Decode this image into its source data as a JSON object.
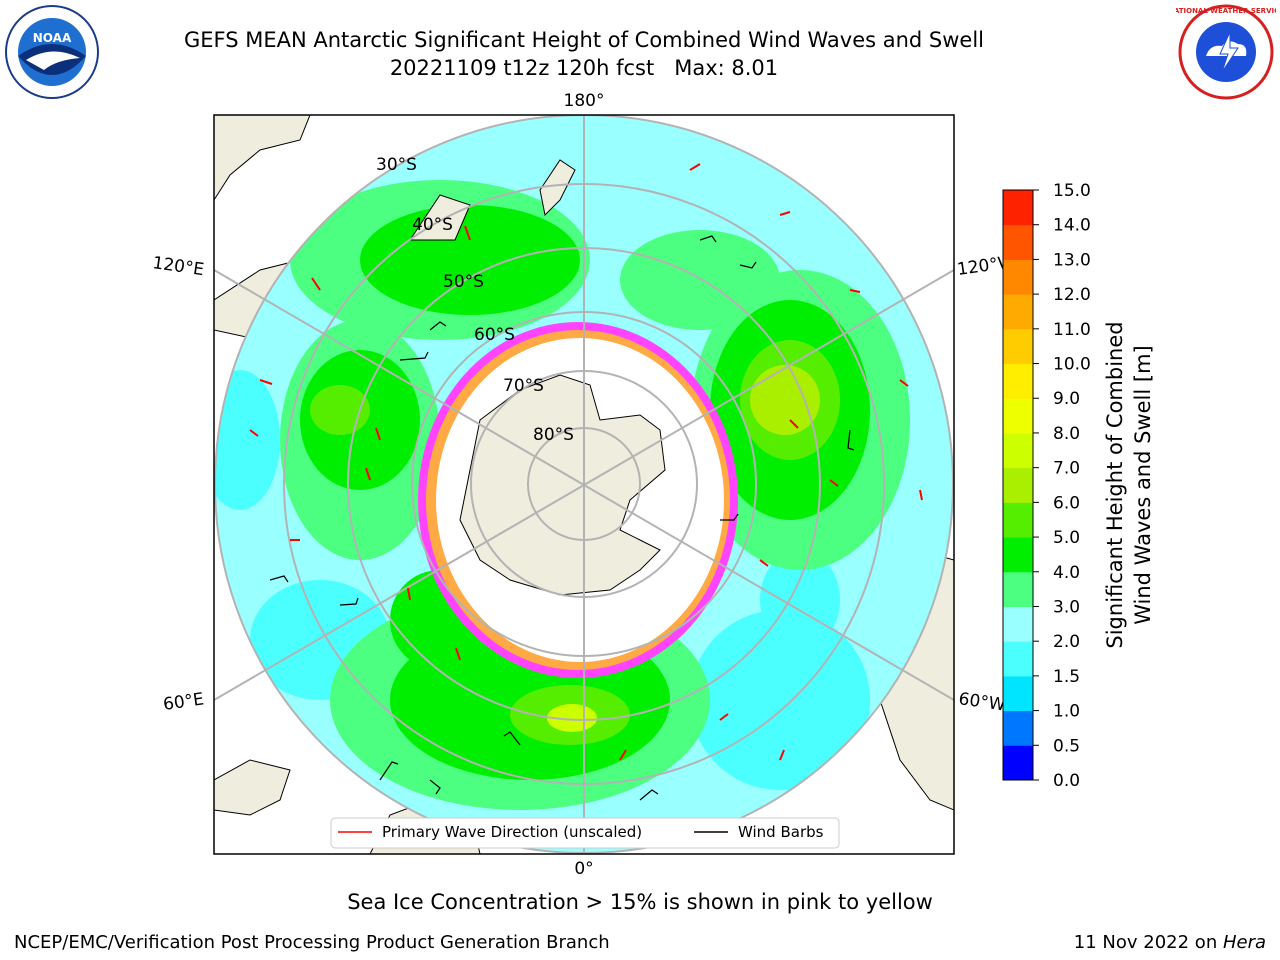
{
  "title": {
    "line1": "GEFS MEAN Antarctic Significant Height of Combined Wind Waves and Swell",
    "line2": "20221109 t12z 120h fcst   Max: 8.01"
  },
  "map": {
    "lon_labels": {
      "top": "180°",
      "bottom": "0°",
      "upper_left": "120°E",
      "upper_right": "120°W",
      "lower_left": "60°E",
      "lower_right": "60°W"
    },
    "lat_labels": [
      "30°S",
      "40°S",
      "50°S",
      "60°S",
      "70°S",
      "80°S"
    ],
    "legend": {
      "wave_label": "Primary Wave Direction (unscaled)",
      "barb_label": "Wind Barbs",
      "wave_color": "#ff0000",
      "barb_color": "#000000"
    },
    "colors": {
      "ocean_low": "#99ffff",
      "land": "#efedde",
      "ice": "#ff44ff",
      "grid": "#b3b3b3"
    }
  },
  "colorbar": {
    "label_line1": "Significant Height of Combined",
    "label_line2": "Wind Waves and Swell [m]",
    "ticks": [
      "0.0",
      "0.5",
      "1.0",
      "1.5",
      "2.0",
      "3.0",
      "4.0",
      "5.0",
      "6.0",
      "7.0",
      "8.0",
      "9.0",
      "10.0",
      "11.0",
      "12.0",
      "13.0",
      "14.0",
      "15.0"
    ],
    "colors": [
      "#0000ff",
      "#0077ff",
      "#00e5ff",
      "#4cffff",
      "#99ffff",
      "#4cff80",
      "#00ef00",
      "#55ee00",
      "#aaee00",
      "#ccff00",
      "#eeff00",
      "#ffee00",
      "#ffcc00",
      "#ffaa00",
      "#ff8800",
      "#ff5500",
      "#ff2200"
    ]
  },
  "footer": {
    "note": "Sea Ice Concentration > 15% is shown in pink to yellow",
    "left": "NCEP/EMC/Verification Post Processing Product Generation Branch",
    "right_date": "11 Nov 2022 on ",
    "right_machine": "Hera"
  },
  "logos": {
    "noaa_text": "NOAA",
    "nws_text": "NATIONAL WEATHER SERVICE"
  }
}
